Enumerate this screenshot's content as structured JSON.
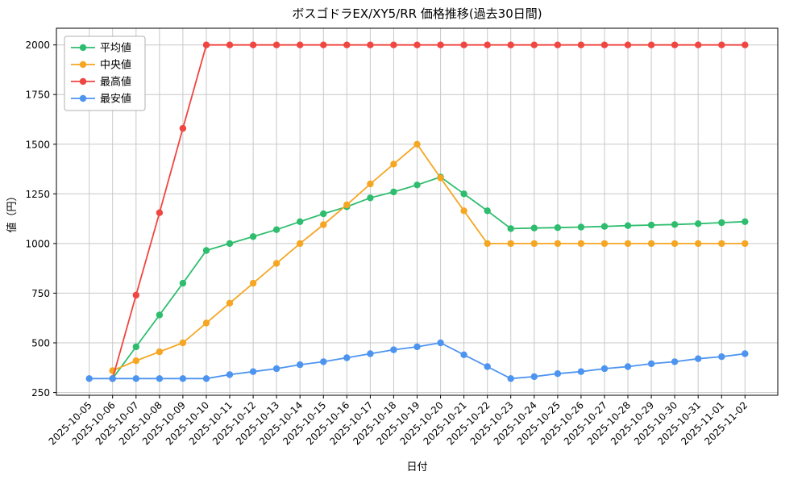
{
  "chart_data": {
    "type": "line",
    "title": "ボスゴドラEX/XY5/RR 価格推移(過去30日間)",
    "xlabel": "日付",
    "ylabel": "値（円）",
    "grid": true,
    "grid_color": "#c8c8c8",
    "legend_position": "upper left",
    "ylim": [
      236,
      2084
    ],
    "yticks": [
      250,
      500,
      750,
      1000,
      1250,
      1500,
      1750,
      2000
    ],
    "x": [
      "2025-10-05",
      "2025-10-06",
      "2025-10-07",
      "2025-10-08",
      "2025-10-09",
      "2025-10-10",
      "2025-10-11",
      "2025-10-12",
      "2025-10-13",
      "2025-10-14",
      "2025-10-15",
      "2025-10-16",
      "2025-10-17",
      "2025-10-18",
      "2025-10-19",
      "2025-10-20",
      "2025-10-21",
      "2025-10-22",
      "2025-10-23",
      "2025-10-24",
      "2025-10-25",
      "2025-10-26",
      "2025-10-27",
      "2025-10-28",
      "2025-10-29",
      "2025-10-30",
      "2025-10-31",
      "2025-11-01",
      "2025-11-02"
    ],
    "series": [
      {
        "key": "average",
        "name": "平均値",
        "color": "#2ebd6e",
        "values": [
          null,
          320,
          480,
          640,
          800,
          965,
          1000,
          1035,
          1070,
          1110,
          1150,
          1185,
          1230,
          1260,
          1295,
          1335,
          1250,
          1165,
          1075,
          1078,
          1080,
          1083,
          1086,
          1090,
          1093,
          1096,
          1100,
          1105,
          1110
        ]
      },
      {
        "key": "median",
        "name": "中央値",
        "color": "#f5a623",
        "values": [
          null,
          360,
          410,
          455,
          500,
          600,
          700,
          800,
          900,
          1000,
          1095,
          1195,
          1300,
          1400,
          1500,
          1330,
          1165,
          1000,
          1000,
          1000,
          1000,
          1000,
          1000,
          1000,
          1000,
          1000,
          1000,
          1000,
          1000
        ]
      },
      {
        "key": "max",
        "name": "最高値",
        "color": "#f04641",
        "values": [
          null,
          320,
          740,
          1155,
          1580,
          2000,
          2000,
          2000,
          2000,
          2000,
          2000,
          2000,
          2000,
          2000,
          2000,
          2000,
          2000,
          2000,
          2000,
          2000,
          2000,
          2000,
          2000,
          2000,
          2000,
          2000,
          2000,
          2000,
          2000
        ]
      },
      {
        "key": "min",
        "name": "最安値",
        "color": "#4d94f0",
        "values": [
          320,
          320,
          320,
          320,
          320,
          320,
          340,
          355,
          370,
          390,
          405,
          425,
          445,
          465,
          480,
          500,
          440,
          380,
          320,
          330,
          345,
          355,
          370,
          380,
          395,
          405,
          420,
          430,
          445
        ]
      }
    ]
  }
}
